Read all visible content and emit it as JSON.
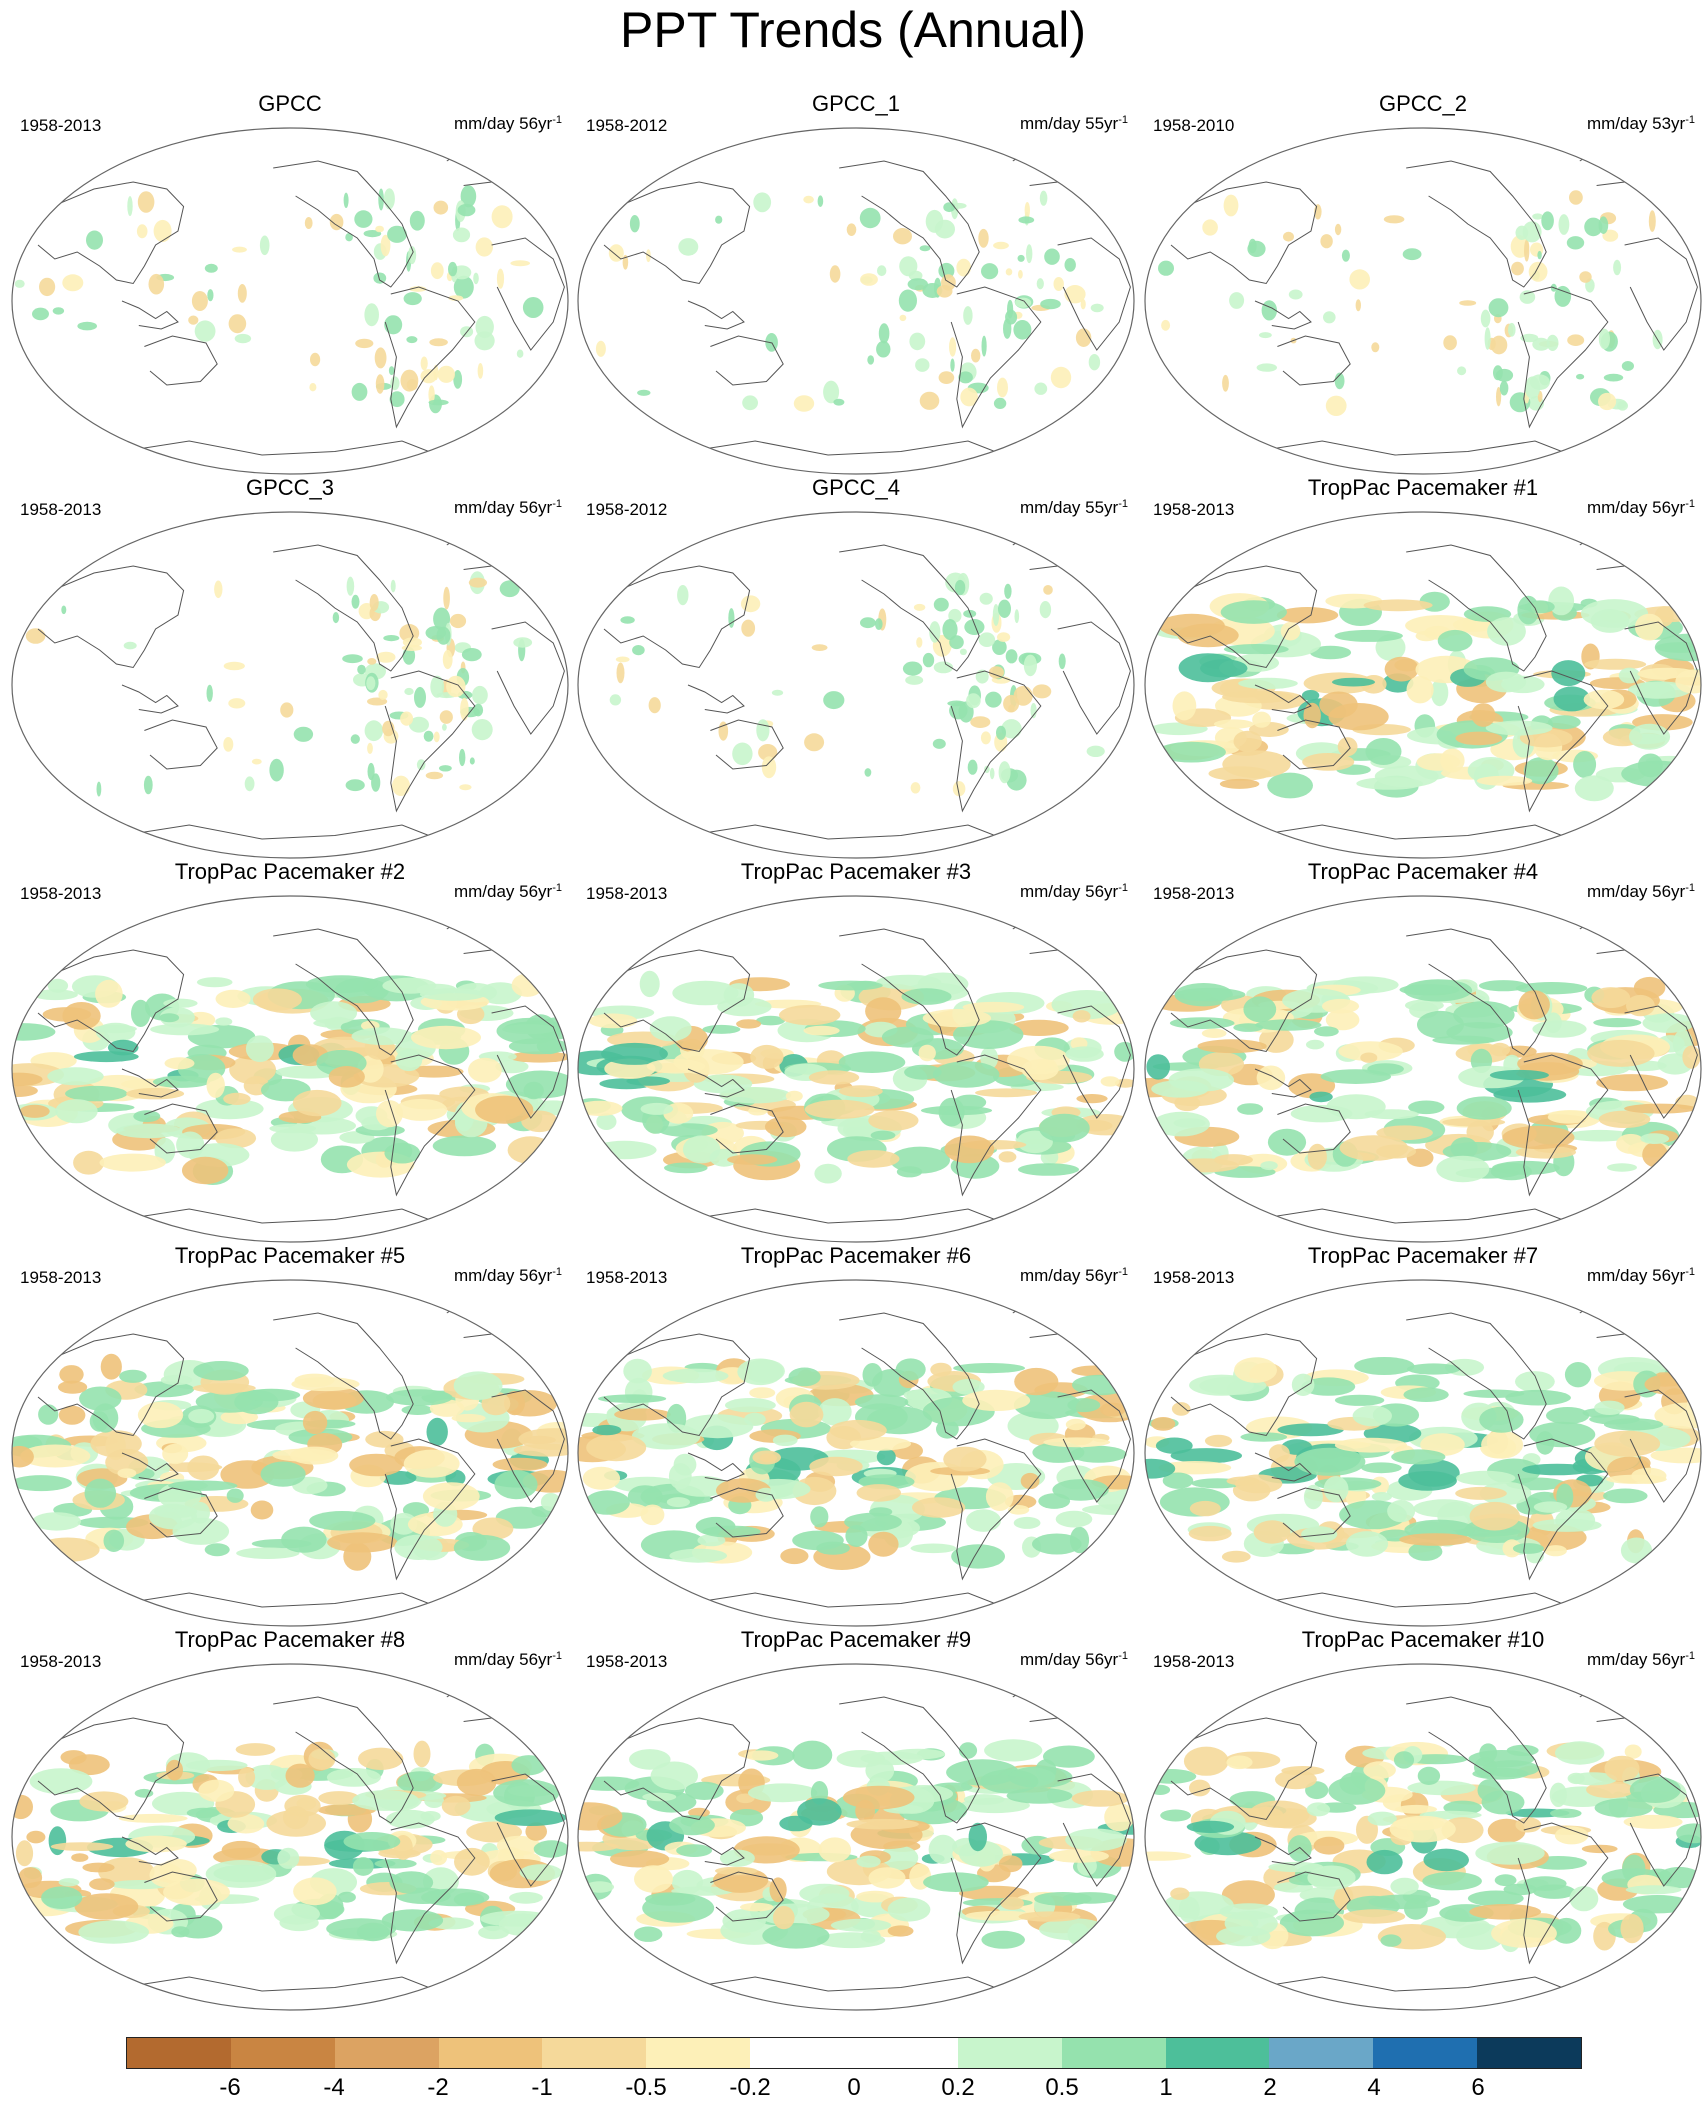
{
  "title": "PPT Trends (Annual)",
  "panels": [
    {
      "name": "GPCC",
      "period": "1958-2013",
      "units": "mm/day 56yr",
      "sup": "-1",
      "style": "obs",
      "seed": 11
    },
    {
      "name": "GPCC_1",
      "period": "1958-2012",
      "units": "mm/day 55yr",
      "sup": "-1",
      "style": "obs",
      "seed": 23
    },
    {
      "name": "GPCC_2",
      "period": "1958-2010",
      "units": "mm/day 53yr",
      "sup": "-1",
      "style": "obs",
      "seed": 37
    },
    {
      "name": "GPCC_3",
      "period": "1958-2013",
      "units": "mm/day 56yr",
      "sup": "-1",
      "style": "obs",
      "seed": 41
    },
    {
      "name": "GPCC_4",
      "period": "1958-2012",
      "units": "mm/day 55yr",
      "sup": "-1",
      "style": "obs",
      "seed": 53
    },
    {
      "name": "TropPac Pacemaker #1",
      "period": "1958-2013",
      "units": "mm/day 56yr",
      "sup": "-1",
      "style": "model",
      "seed": 61
    },
    {
      "name": "TropPac Pacemaker #2",
      "period": "1958-2013",
      "units": "mm/day 56yr",
      "sup": "-1",
      "style": "model",
      "seed": 71
    },
    {
      "name": "TropPac Pacemaker #3",
      "period": "1958-2013",
      "units": "mm/day 56yr",
      "sup": "-1",
      "style": "model",
      "seed": 83
    },
    {
      "name": "TropPac Pacemaker #4",
      "period": "1958-2013",
      "units": "mm/day 56yr",
      "sup": "-1",
      "style": "model",
      "seed": 97
    },
    {
      "name": "TropPac Pacemaker #5",
      "period": "1958-2013",
      "units": "mm/day 56yr",
      "sup": "-1",
      "style": "model",
      "seed": 101
    },
    {
      "name": "TropPac Pacemaker #6",
      "period": "1958-2013",
      "units": "mm/day 56yr",
      "sup": "-1",
      "style": "model",
      "seed": 113
    },
    {
      "name": "TropPac Pacemaker #7",
      "period": "1958-2013",
      "units": "mm/day 56yr",
      "sup": "-1",
      "style": "model",
      "seed": 127
    },
    {
      "name": "TropPac Pacemaker #8",
      "period": "1958-2013",
      "units": "mm/day 56yr",
      "sup": "-1",
      "style": "model",
      "seed": 131
    },
    {
      "name": "TropPac Pacemaker #9",
      "period": "1958-2013",
      "units": "mm/day 56yr",
      "sup": "-1",
      "style": "model",
      "seed": 149
    },
    {
      "name": "TropPac Pacemaker #10",
      "period": "1958-2013",
      "units": "mm/day 56yr",
      "sup": "-1",
      "style": "model",
      "seed": 157
    }
  ],
  "colorbar": {
    "colors": [
      "#b36a2f",
      "#c98542",
      "#dca362",
      "#eec27a",
      "#f5d99a",
      "#fdf0b8",
      "#ffffff",
      "#ffffff",
      "#c8f5cc",
      "#95e2ae",
      "#4dbf9a",
      "#6aa7c8",
      "#1f6fb0",
      "#0c3a5b"
    ],
    "labels": [
      "-6",
      "-4",
      "-2",
      "-1",
      "-0.5",
      "-0.2",
      "0",
      "0.2",
      "0.5",
      "1",
      "2",
      "4",
      "6"
    ]
  }
}
